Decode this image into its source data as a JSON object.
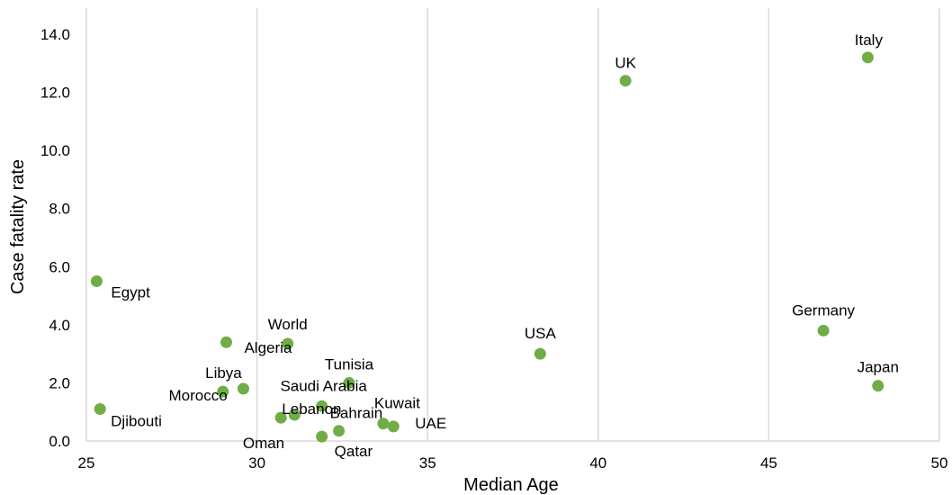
{
  "chart_data": {
    "type": "scatter",
    "xlabel": "Median Age",
    "ylabel": "Case fatality rate",
    "xlim": [
      25,
      50
    ],
    "ylim": [
      0,
      14
    ],
    "x_ticks": [
      "25",
      "30",
      "35",
      "40",
      "45",
      "50"
    ],
    "y_ticks": [
      "0.0",
      "2.0",
      "4.0",
      "6.0",
      "8.0",
      "10.0",
      "12.0",
      "14.0"
    ],
    "grid": true,
    "marker_color": "#70ad47",
    "points": [
      {
        "label": "Egypt",
        "x": 25.3,
        "y": 5.5
      },
      {
        "label": "Djibouti",
        "x": 25.4,
        "y": 1.1
      },
      {
        "label": "Algeria",
        "x": 29.1,
        "y": 3.4
      },
      {
        "label": "Morocco",
        "x": 29.0,
        "y": 1.7
      },
      {
        "label": "Libya",
        "x": 29.6,
        "y": 1.8
      },
      {
        "label": "World",
        "x": 30.9,
        "y": 3.35
      },
      {
        "label": "Oman",
        "x": 30.7,
        "y": 0.8
      },
      {
        "label": "Lebanon",
        "x": 31.1,
        "y": 0.9
      },
      {
        "label": "Qatar",
        "x": 31.9,
        "y": 0.15
      },
      {
        "label": "Saudi Arabia",
        "x": 31.9,
        "y": 1.2
      },
      {
        "label": "Bahrain",
        "x": 32.4,
        "y": 0.35
      },
      {
        "label": "Tunisia",
        "x": 32.7,
        "y": 2.0
      },
      {
        "label": "Kuwait",
        "x": 33.7,
        "y": 0.6
      },
      {
        "label": "UAE",
        "x": 34.0,
        "y": 0.5
      },
      {
        "label": "USA",
        "x": 38.3,
        "y": 3.0
      },
      {
        "label": "UK",
        "x": 40.8,
        "y": 12.4
      },
      {
        "label": "Germany",
        "x": 46.6,
        "y": 3.8
      },
      {
        "label": "Italy",
        "x": 47.9,
        "y": 13.2
      },
      {
        "label": "Japan",
        "x": 48.2,
        "y": 1.9
      }
    ]
  }
}
